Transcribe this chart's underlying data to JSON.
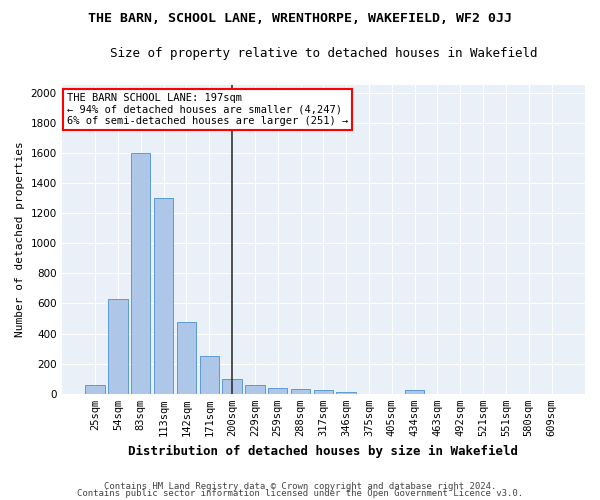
{
  "title": "THE BARN, SCHOOL LANE, WRENTHORPE, WAKEFIELD, WF2 0JJ",
  "subtitle": "Size of property relative to detached houses in Wakefield",
  "xlabel": "Distribution of detached houses by size in Wakefield",
  "ylabel": "Number of detached properties",
  "categories": [
    "25sqm",
    "54sqm",
    "83sqm",
    "113sqm",
    "142sqm",
    "171sqm",
    "200sqm",
    "229sqm",
    "259sqm",
    "288sqm",
    "317sqm",
    "346sqm",
    "375sqm",
    "405sqm",
    "434sqm",
    "463sqm",
    "492sqm",
    "521sqm",
    "551sqm",
    "580sqm",
    "609sqm"
  ],
  "values": [
    60,
    630,
    1600,
    1300,
    475,
    250,
    100,
    55,
    38,
    30,
    22,
    14,
    0,
    0,
    22,
    0,
    0,
    0,
    0,
    0,
    0
  ],
  "bar_color": "#aec6e8",
  "bar_edge_color": "#5b9bd5",
  "highlight_index": 6,
  "highlight_line_color": "#333333",
  "annotation_line1": "THE BARN SCHOOL LANE: 197sqm",
  "annotation_line2": "← 94% of detached houses are smaller (4,247)",
  "annotation_line3": "6% of semi-detached houses are larger (251) →",
  "annotation_box_color": "white",
  "annotation_box_edge_color": "red",
  "ylim": [
    0,
    2050
  ],
  "yticks": [
    0,
    200,
    400,
    600,
    800,
    1000,
    1200,
    1400,
    1600,
    1800,
    2000
  ],
  "background_color": "#eaf0f8",
  "grid_color": "white",
  "footer1": "Contains HM Land Registry data © Crown copyright and database right 2024.",
  "footer2": "Contains public sector information licensed under the Open Government Licence v3.0.",
  "title_fontsize": 9.5,
  "subtitle_fontsize": 9,
  "xlabel_fontsize": 9,
  "ylabel_fontsize": 8,
  "tick_fontsize": 7.5,
  "annotation_fontsize": 7.5,
  "footer_fontsize": 6.5
}
